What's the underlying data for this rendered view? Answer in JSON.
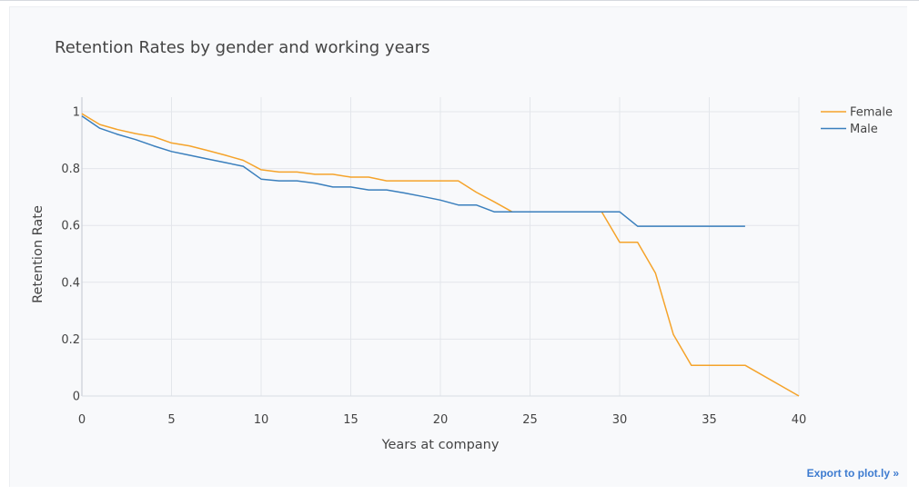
{
  "chart_data": {
    "type": "line",
    "title": "Retention Rates by gender and working years",
    "xlabel": "Years at company",
    "ylabel": "Retention Rate",
    "xlim": [
      0,
      40
    ],
    "ylim": [
      0,
      1
    ],
    "xticks": [
      "0",
      "5",
      "10",
      "15",
      "20",
      "25",
      "30",
      "35",
      "40"
    ],
    "yticks": [
      "0",
      "0.2",
      "0.4",
      "0.6",
      "0.8",
      "1"
    ],
    "grid": true,
    "legend_position": "top-right",
    "series": [
      {
        "name": "Female",
        "color": "#f5a32a",
        "x": [
          0,
          1,
          2,
          3,
          4,
          5,
          6,
          7,
          8,
          9,
          10,
          11,
          12,
          13,
          14,
          15,
          16,
          17,
          18,
          19,
          20,
          21,
          22,
          23,
          24,
          25,
          26,
          27,
          28,
          29,
          30,
          31,
          32,
          33,
          34,
          35,
          36,
          37,
          40
        ],
        "y": [
          0.993,
          0.955,
          0.937,
          0.923,
          0.912,
          0.89,
          0.88,
          0.864,
          0.847,
          0.829,
          0.796,
          0.788,
          0.788,
          0.78,
          0.78,
          0.77,
          0.77,
          0.757,
          0.757,
          0.757,
          0.757,
          0.757,
          0.717,
          0.683,
          0.648,
          0.648,
          0.648,
          0.648,
          0.648,
          0.648,
          0.541,
          0.541,
          0.432,
          0.216,
          0.108,
          0.108,
          0.108,
          0.108,
          0.0
        ]
      },
      {
        "name": "Male",
        "color": "#3a7fbd",
        "x": [
          0,
          1,
          2,
          3,
          4,
          5,
          6,
          7,
          8,
          9,
          10,
          11,
          12,
          13,
          14,
          15,
          16,
          17,
          18,
          19,
          20,
          21,
          22,
          23,
          24,
          25,
          26,
          27,
          28,
          29,
          30,
          31,
          32,
          33,
          34,
          35,
          36,
          37
        ],
        "y": [
          0.985,
          0.942,
          0.92,
          0.902,
          0.88,
          0.86,
          0.847,
          0.834,
          0.821,
          0.808,
          0.763,
          0.757,
          0.757,
          0.749,
          0.735,
          0.735,
          0.725,
          0.725,
          0.714,
          0.702,
          0.689,
          0.672,
          0.672,
          0.648,
          0.648,
          0.648,
          0.648,
          0.648,
          0.648,
          0.648,
          0.648,
          0.597,
          0.597,
          0.597,
          0.597,
          0.597,
          0.597,
          0.597
        ]
      }
    ]
  },
  "export_link": "Export to plot.ly »"
}
